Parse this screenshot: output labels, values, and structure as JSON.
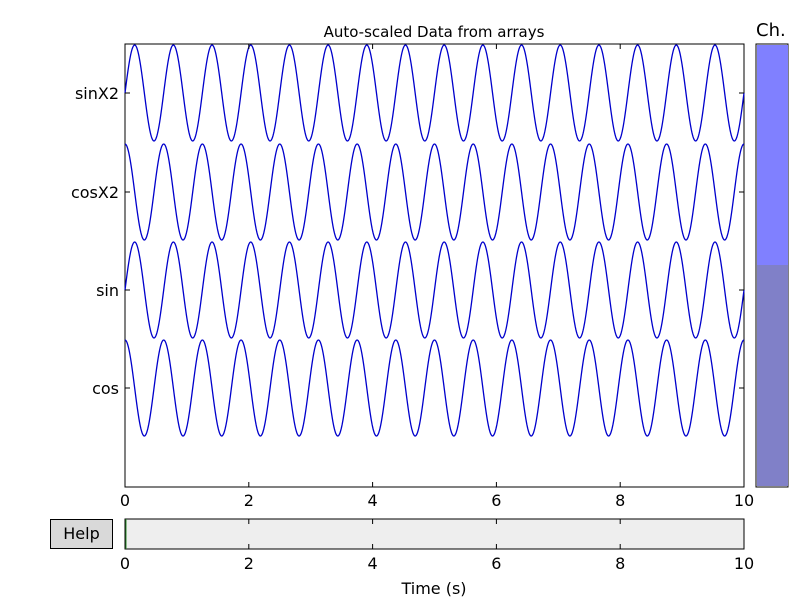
{
  "title": "Auto-scaled Data from arrays",
  "scrollbar_label": "Ch.",
  "help_button": "Help",
  "xlabel": "Time (s)",
  "chart_data": {
    "type": "line",
    "title": "Auto-scaled Data from arrays",
    "xlabel": "Time (s)",
    "xlim": [
      0,
      10
    ],
    "xticks": [
      0,
      2,
      4,
      6,
      8,
      10
    ],
    "channel_labels": [
      "sinX2",
      "cosX2",
      "sin",
      "cos"
    ],
    "series": [
      {
        "name": "sinX2",
        "function": "sin",
        "frequency_hz": 1.6,
        "amplitude": 1
      },
      {
        "name": "cosX2",
        "function": "cos",
        "frequency_hz": 1.6,
        "amplitude": 1
      },
      {
        "name": "sin",
        "function": "sin",
        "frequency_hz": 1.6,
        "amplitude": 1
      },
      {
        "name": "cos",
        "function": "cos",
        "frequency_hz": 1.6,
        "amplitude": 1
      }
    ],
    "line_color": "#0000cc",
    "grid": false
  },
  "colors": {
    "scrollbar_top": "#8080ff",
    "scrollbar_bottom": "#8080c8",
    "nav_background": "#eeeeee",
    "button_background": "#d9d9d9"
  }
}
